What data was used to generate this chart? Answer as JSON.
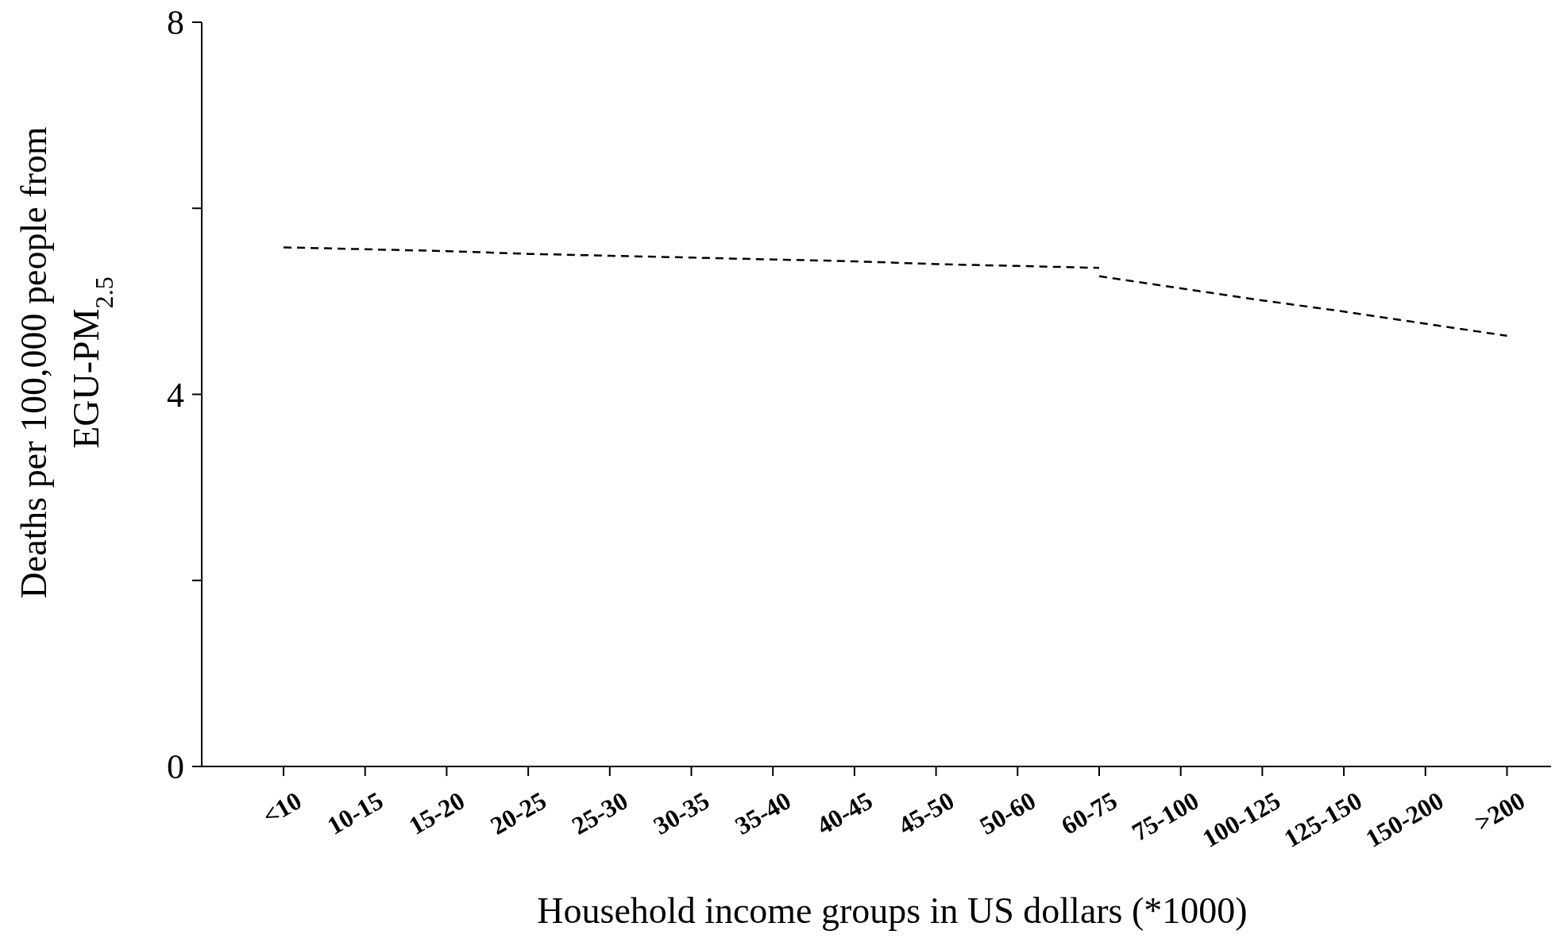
{
  "chart_data": {
    "type": "line",
    "xlabel": "Household income groups in US dollars (*1000)",
    "ylabel": "Deaths per 100,000 people from EGU-PM$_{2.5}$",
    "categories": [
      "<10",
      "10-15",
      "15-20",
      "20-25",
      "25-30",
      "30-35",
      "35-40",
      "40-45",
      "45-50",
      "50-60",
      "60-75",
      "75-100",
      "100-125",
      "125-150",
      "150-200",
      ">200"
    ],
    "series": [
      {
        "color": "#000000",
        "values": [
          5.58,
          5.56,
          5.54,
          5.51,
          5.49,
          5.47,
          5.45,
          5.43,
          5.4,
          5.38,
          5.36,
          null,
          null,
          null,
          null,
          null
        ]
      },
      {
        "color": "#000000",
        "values": [
          null,
          null,
          null,
          null,
          null,
          null,
          null,
          null,
          null,
          null,
          5.27,
          5.14,
          5.01,
          4.89,
          4.76,
          4.63
        ]
      }
    ],
    "ylim": [
      0,
      8
    ],
    "yticks": [
      0,
      {
        "value": 2,
        "label": null
      },
      4,
      {
        "value": 6,
        "label": null
      },
      8
    ],
    "line_style": "dashed",
    "marker": "none",
    "grid": false
  }
}
